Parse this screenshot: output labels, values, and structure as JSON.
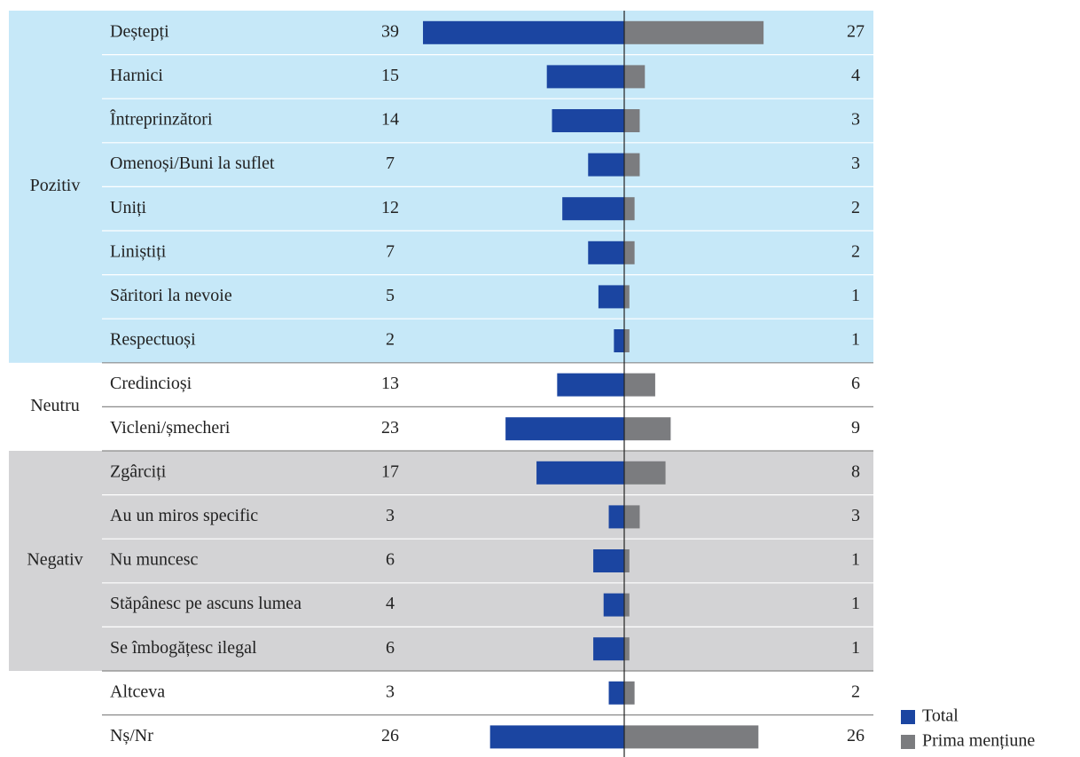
{
  "chart_data": {
    "type": "diverging_bar",
    "groups": [
      {
        "label": "Pozitiv",
        "color": "#c6e8f8",
        "categories": [
          "Deștepți",
          "Harnici",
          "Întreprinzători",
          "Omenoși/Buni la suflet",
          "Uniți",
          "Liniștiți",
          "Săritori la nevoie",
          "Respectuoși"
        ]
      },
      {
        "label": "Neutru",
        "color": "#ffffff",
        "categories": [
          "Credincioși",
          "Vicleni/șmecheri"
        ]
      },
      {
        "label": "Negativ",
        "color": "#d3d3d5",
        "categories": [
          "Zgârciți",
          "Au un miros specific",
          "Nu muncesc",
          "Stăpânesc pe ascuns lumea",
          "Se îmbogățesc ilegal"
        ]
      },
      {
        "label": null,
        "color": "#ffffff",
        "categories": [
          "Altceva",
          "Nș/Nr"
        ]
      }
    ],
    "series": [
      {
        "name": "Total",
        "color": "#1b45a1",
        "values": [
          39,
          15,
          14,
          7,
          12,
          7,
          5,
          2,
          13,
          23,
          17,
          3,
          6,
          4,
          6,
          3,
          26
        ]
      },
      {
        "name": "Prima mențiune",
        "color": "#7b7c7f",
        "values": [
          27,
          4,
          3,
          3,
          2,
          2,
          1,
          1,
          6,
          9,
          8,
          3,
          1,
          1,
          1,
          2,
          26
        ]
      }
    ]
  }
}
